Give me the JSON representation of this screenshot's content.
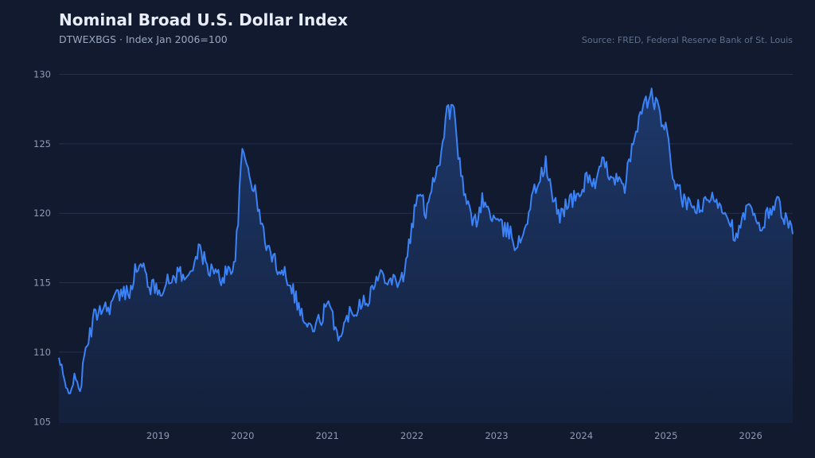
{
  "header": {
    "title": "Nominal Broad U.S. Dollar Index",
    "subtitle": "DTWEXBGS · Index Jan 2006=100",
    "source": "Source: FRED, Federal Reserve Bank of St. Louis"
  },
  "colors": {
    "background": "#111a2e",
    "line": "#3b82f6",
    "gridline": "#24304a",
    "area_fill_top": "#1e3a6e",
    "tick_text": "#8e9ab3"
  },
  "chart_data": {
    "type": "area",
    "title": "Nominal Broad U.S. Dollar Index",
    "subtitle": "DTWEXBGS · Index Jan 2006=100",
    "xlabel": "",
    "ylabel": "",
    "xlim": [
      "2018-01",
      "2026-09"
    ],
    "ylim": [
      104.9,
      130.2
    ],
    "y_ticks": [
      105,
      110,
      115,
      120,
      125,
      130
    ],
    "x_ticks": [
      "2019",
      "2020",
      "2021",
      "2022",
      "2023",
      "2024",
      "2025",
      "2026"
    ],
    "grid": "horizontal",
    "series": [
      {
        "x": [
          "2018-01",
          "2018-02",
          "2018-03",
          "2018-04",
          "2018-05",
          "2018-06",
          "2018-07",
          "2018-08",
          "2018-09",
          "2018-10",
          "2018-11",
          "2018-12",
          "2019-01",
          "2019-02",
          "2019-03",
          "2019-04",
          "2019-05",
          "2019-06",
          "2019-07",
          "2019-08",
          "2019-09",
          "2019-10",
          "2019-11",
          "2019-12",
          "2020-01",
          "2020-02",
          "2020-03",
          "2020-04",
          "2020-05",
          "2020-06",
          "2020-07",
          "2020-08",
          "2020-09",
          "2020-10",
          "2020-11",
          "2020-12",
          "2021-01",
          "2021-02",
          "2021-03",
          "2021-04",
          "2021-05",
          "2021-06",
          "2021-07",
          "2021-08",
          "2021-09",
          "2021-10",
          "2021-11",
          "2021-12",
          "2022-01",
          "2022-02",
          "2022-03",
          "2022-04",
          "2022-05",
          "2022-06",
          "2022-07",
          "2022-08",
          "2022-09",
          "2022-10",
          "2022-11",
          "2022-12",
          "2023-01",
          "2023-02",
          "2023-03",
          "2023-04",
          "2023-05",
          "2023-06",
          "2023-07",
          "2023-08",
          "2023-09",
          "2023-10",
          "2023-11",
          "2023-12",
          "2024-01",
          "2024-02",
          "2024-03",
          "2024-04",
          "2024-05",
          "2024-06",
          "2024-07",
          "2024-08",
          "2024-09",
          "2024-10",
          "2024-11",
          "2024-12",
          "2025-01",
          "2025-02",
          "2025-03",
          "2025-04",
          "2025-05",
          "2025-06",
          "2025-07",
          "2025-08",
          "2025-09",
          "2025-10",
          "2025-11",
          "2025-12",
          "2026-01",
          "2026-02",
          "2026-03",
          "2026-04",
          "2026-05",
          "2026-06",
          "2026-07",
          "2026-08",
          "2026-09"
        ],
        "values": [
          109.5,
          107.2,
          107.9,
          107.5,
          110.5,
          112.5,
          113.3,
          113.2,
          114.0,
          114.1,
          114.5,
          116.1,
          116.0,
          114.7,
          114.5,
          114.8,
          115.2,
          115.9,
          115.0,
          116.5,
          117.3,
          116.2,
          115.7,
          115.3,
          115.9,
          116.6,
          124.5,
          123.0,
          121.0,
          118.5,
          117.0,
          116.2,
          115.8,
          114.8,
          113.3,
          112.0,
          111.6,
          112.3,
          113.4,
          112.2,
          110.9,
          112.8,
          113.1,
          113.8,
          114.0,
          115.2,
          115.7,
          115.3,
          115.2,
          115.6,
          119.0,
          121.5,
          120.2,
          122.4,
          123.8,
          127.4,
          127.3,
          122.5,
          120.3,
          119.3,
          120.9,
          120.1,
          119.4,
          118.8,
          118.6,
          117.5,
          119.0,
          121.0,
          122.4,
          123.5,
          121.0,
          119.8,
          120.8,
          121.0,
          121.5,
          122.8,
          122.0,
          123.5,
          123.0,
          122.5,
          121.6,
          124.0,
          126.5,
          127.8,
          128.5,
          127.3,
          126.0,
          122.8,
          121.4,
          120.5,
          120.5,
          120.3,
          120.8,
          121.2,
          120.5,
          119.8,
          118.0,
          119.7,
          120.5,
          118.8,
          119.4,
          120.5,
          120.8,
          119.5,
          118.5
        ]
      }
    ]
  }
}
